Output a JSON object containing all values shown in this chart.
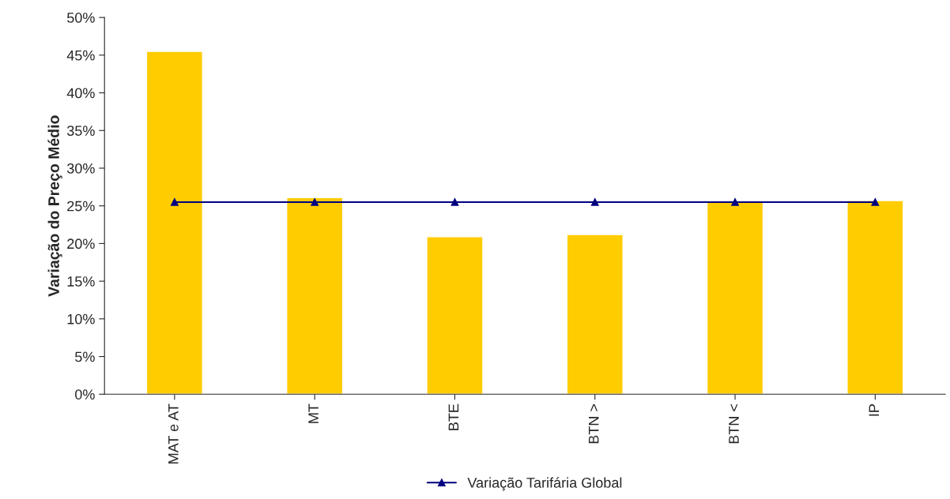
{
  "chart_data": {
    "type": "bar",
    "ylabel": "Variação do Preço Médio",
    "categories": [
      "MAT e AT",
      "MT",
      "BTE",
      "BTN >",
      "BTN <",
      "IP"
    ],
    "series": [
      {
        "color": "#ffcc00",
        "values": [
          45.5,
          26.1,
          20.9,
          21.2,
          25.5,
          25.7
        ]
      },
      {
        "type": "line",
        "name": "Variação Tarifária Global",
        "color": "#000080",
        "marker": "triangle",
        "values": [
          25.5,
          25.5,
          25.5,
          25.5,
          25.5,
          25.5
        ]
      }
    ],
    "ylim": [
      0,
      50
    ],
    "yticks": [
      {
        "value": 0,
        "label": "0%"
      },
      {
        "value": 5,
        "label": "5%"
      },
      {
        "value": 10,
        "label": "10%"
      },
      {
        "value": 15,
        "label": "15%"
      },
      {
        "value": 20,
        "label": "20%"
      },
      {
        "value": 25,
        "label": "25%"
      },
      {
        "value": 30,
        "label": "30%"
      },
      {
        "value": 35,
        "label": "35%"
      },
      {
        "value": 40,
        "label": "40%"
      },
      {
        "value": 45,
        "label": "45%"
      },
      {
        "value": 50,
        "label": "50%"
      }
    ],
    "grid": false,
    "legend": "bottom"
  }
}
